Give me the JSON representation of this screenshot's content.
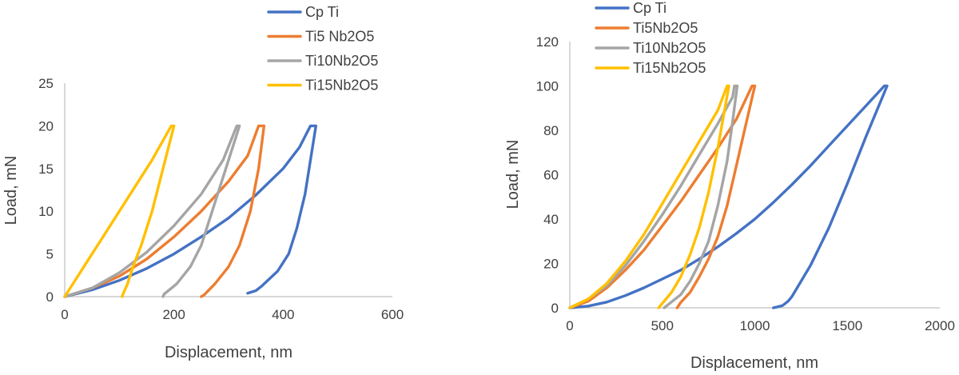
{
  "chart_data": [
    {
      "type": "line",
      "xlabel": "Displacement, nm",
      "ylabel": "Load, mN",
      "xlim": [
        0,
        600
      ],
      "ylim": [
        0,
        25
      ],
      "xticks": [
        "0",
        "200",
        "400",
        "600"
      ],
      "yticks": [
        "0",
        "5",
        "10",
        "15",
        "20",
        "25"
      ],
      "legend_position": "top",
      "series": [
        {
          "name": "Cp Ti",
          "color": "#4472C4",
          "points": [
            [
              0,
              0
            ],
            [
              50,
              0.8
            ],
            [
              100,
              1.9
            ],
            [
              150,
              3.3
            ],
            [
              200,
              5.0
            ],
            [
              250,
              7.0
            ],
            [
              300,
              9.2
            ],
            [
              350,
              11.9
            ],
            [
              400,
              15.0
            ],
            [
              430,
              17.5
            ],
            [
              450,
              20
            ],
            [
              460,
              20
            ],
            [
              450,
              16
            ],
            [
              440,
              12
            ],
            [
              425,
              8
            ],
            [
              410,
              5
            ],
            [
              390,
              3
            ],
            [
              360,
              1.2
            ],
            [
              350,
              0.7
            ],
            [
              335,
              0.4
            ]
          ]
        },
        {
          "name": "Ti5 Nb2O5",
          "color": "#ED7D31",
          "points": [
            [
              0,
              0
            ],
            [
              50,
              1.0
            ],
            [
              100,
              2.4
            ],
            [
              150,
              4.4
            ],
            [
              200,
              7.0
            ],
            [
              250,
              10.0
            ],
            [
              300,
              13.5
            ],
            [
              335,
              16.5
            ],
            [
              355,
              20
            ],
            [
              365,
              20
            ],
            [
              355,
              15
            ],
            [
              340,
              10
            ],
            [
              320,
              6
            ],
            [
              300,
              3.5
            ],
            [
              275,
              1.5
            ],
            [
              255,
              0.2
            ],
            [
              250,
              0
            ]
          ]
        },
        {
          "name": "Ti10Nb2O5",
          "color": "#A5A5A5",
          "points": [
            [
              0,
              0
            ],
            [
              50,
              1.0
            ],
            [
              100,
              2.8
            ],
            [
              150,
              5.2
            ],
            [
              200,
              8.3
            ],
            [
              250,
              12.0
            ],
            [
              290,
              16.0
            ],
            [
              315,
              20
            ],
            [
              320,
              20
            ],
            [
              295,
              15
            ],
            [
              270,
              10
            ],
            [
              250,
              6
            ],
            [
              230,
              3.5
            ],
            [
              205,
              1.5
            ],
            [
              182,
              0.3
            ],
            [
              180,
              0
            ]
          ]
        },
        {
          "name": "Ti15Nb2O5",
          "color": "#FFC000",
          "points": [
            [
              0,
              0
            ],
            [
              40,
              4.0
            ],
            [
              80,
              8.0
            ],
            [
              120,
              12.0
            ],
            [
              160,
              16.0
            ],
            [
              195,
              20
            ],
            [
              200,
              20
            ],
            [
              180,
              15
            ],
            [
              160,
              10
            ],
            [
              140,
              6
            ],
            [
              125,
              3.5
            ],
            [
              115,
              1.5
            ],
            [
              108,
              0.5
            ],
            [
              105,
              0
            ]
          ]
        }
      ]
    },
    {
      "type": "line",
      "xlabel": "Displacement, nm",
      "ylabel": "Load, mN",
      "xlim": [
        0,
        2000
      ],
      "ylim": [
        0,
        120
      ],
      "xticks": [
        "0",
        "500",
        "1000",
        "1500",
        "2000"
      ],
      "yticks": [
        "0",
        "20",
        "40",
        "60",
        "80",
        "100",
        "120"
      ],
      "legend_position": "top",
      "series": [
        {
          "name": "Cp Ti",
          "color": "#4472C4",
          "points": [
            [
              0,
              0
            ],
            [
              100,
              0.8
            ],
            [
              200,
              2.6
            ],
            [
              300,
              5.5
            ],
            [
              400,
              9.0
            ],
            [
              500,
              13.0
            ],
            [
              600,
              17.0
            ],
            [
              700,
              22.0
            ],
            [
              800,
              27.5
            ],
            [
              900,
              33.5
            ],
            [
              1000,
              40.0
            ],
            [
              1100,
              47.5
            ],
            [
              1200,
              55.5
            ],
            [
              1300,
              64.0
            ],
            [
              1400,
              73.0
            ],
            [
              1500,
              82.0
            ],
            [
              1600,
              91.0
            ],
            [
              1700,
              100
            ],
            [
              1715,
              100
            ],
            [
              1600,
              77
            ],
            [
              1500,
              56
            ],
            [
              1400,
              36
            ],
            [
              1300,
              19
            ],
            [
              1200,
              5
            ],
            [
              1180,
              3
            ],
            [
              1150,
              1
            ],
            [
              1100,
              0
            ]
          ]
        },
        {
          "name": "Ti5Nb2O5",
          "color": "#ED7D31",
          "points": [
            [
              0,
              0
            ],
            [
              100,
              3
            ],
            [
              200,
              9
            ],
            [
              300,
              17
            ],
            [
              400,
              26
            ],
            [
              500,
              37
            ],
            [
              600,
              48
            ],
            [
              700,
              60
            ],
            [
              800,
              72
            ],
            [
              900,
              85
            ],
            [
              985,
              100
            ],
            [
              1000,
              100
            ],
            [
              950,
              82
            ],
            [
              900,
              64
            ],
            [
              850,
              46
            ],
            [
              800,
              32
            ],
            [
              750,
              22
            ],
            [
              700,
              14
            ],
            [
              650,
              7
            ],
            [
              600,
              2.5
            ],
            [
              580,
              0
            ]
          ]
        },
        {
          "name": "Ti10Nb2O5",
          "color": "#A5A5A5",
          "points": [
            [
              0,
              0
            ],
            [
              100,
              4
            ],
            [
              200,
              10
            ],
            [
              300,
              19
            ],
            [
              400,
              30
            ],
            [
              500,
              42
            ],
            [
              600,
              55
            ],
            [
              700,
              69
            ],
            [
              800,
              83
            ],
            [
              880,
              95
            ],
            [
              890,
              100
            ],
            [
              905,
              100
            ],
            [
              880,
              84
            ],
            [
              850,
              66
            ],
            [
              800,
              46
            ],
            [
              750,
              30
            ],
            [
              700,
              20
            ],
            [
              650,
              12
            ],
            [
              600,
              6
            ],
            [
              540,
              2
            ],
            [
              510,
              0
            ]
          ]
        },
        {
          "name": "Ti15Nb2O5",
          "color": "#FFC000",
          "points": [
            [
              0,
              0
            ],
            [
              100,
              4
            ],
            [
              200,
              11
            ],
            [
              300,
              21
            ],
            [
              400,
              33
            ],
            [
              500,
              47
            ],
            [
              600,
              61
            ],
            [
              700,
              75
            ],
            [
              800,
              89
            ],
            [
              850,
              100
            ],
            [
              860,
              100
            ],
            [
              830,
              86
            ],
            [
              800,
              72
            ],
            [
              750,
              52
            ],
            [
              700,
              36
            ],
            [
              650,
              24
            ],
            [
              600,
              14
            ],
            [
              550,
              7
            ],
            [
              500,
              2
            ],
            [
              480,
              0
            ]
          ]
        }
      ]
    }
  ]
}
